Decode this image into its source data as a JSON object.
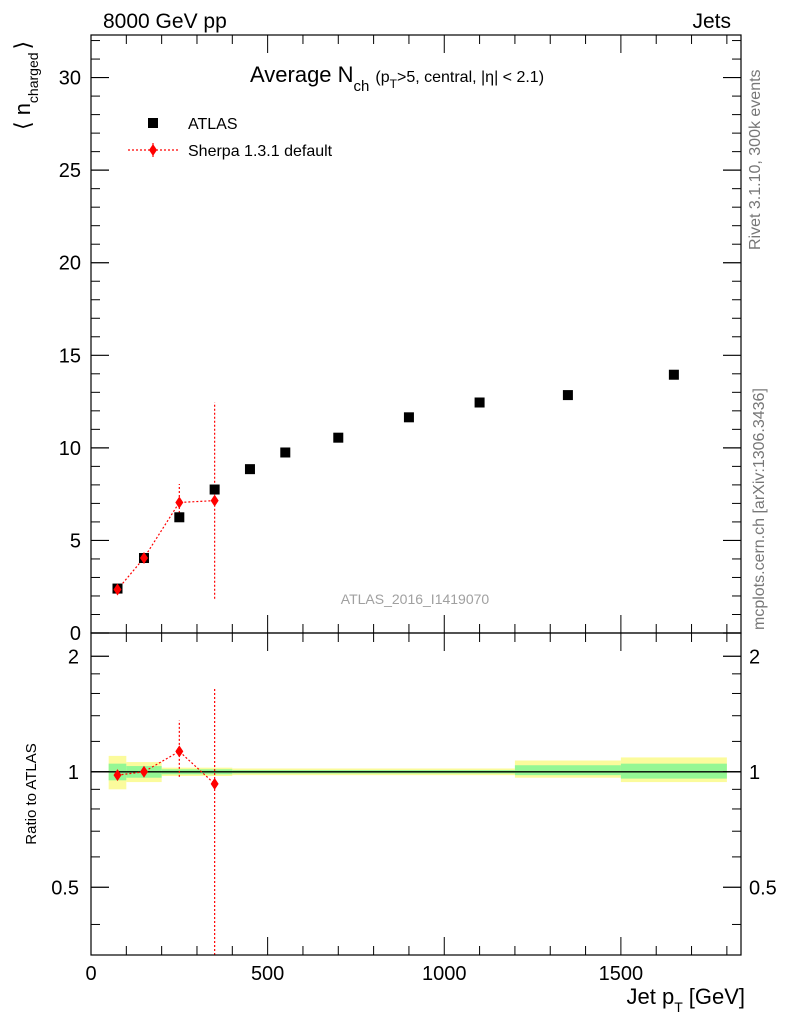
{
  "header": {
    "left": "8000 GeV pp",
    "right": "Jets"
  },
  "side_text": {
    "rivet": "Rivet 3.1.10,  300k events",
    "mcplots": "mcplots.cern.ch [arXiv:1306.3436]"
  },
  "chart_data": [
    {
      "type": "scatter",
      "title_main": "Average N",
      "title_sub": "ch",
      "title_rest": "(p",
      "title_sub2": "T",
      "title_tail": ">5, central, |η| < 2.1)",
      "ylabel": "⟨ n",
      "ylabel_sub": "charged",
      "ylabel_tail": "⟩",
      "ylim": [
        0,
        32.3
      ],
      "yticks": [
        0,
        5,
        10,
        15,
        20,
        25,
        30
      ],
      "watermark": "ATLAS_2016_I1419070",
      "legend_position": "top-left",
      "series": [
        {
          "name": "ATLAS",
          "marker": "square",
          "color": "#000000",
          "x": [
            75,
            150,
            250,
            350,
            450,
            550,
            700,
            900,
            1100,
            1350,
            1650
          ],
          "y": [
            2.4,
            4.05,
            6.25,
            7.75,
            8.85,
            9.75,
            10.55,
            11.65,
            12.45,
            12.85,
            13.95
          ]
        },
        {
          "name": "Sherpa 1.3.1 default",
          "marker": "diamond",
          "color": "#ff0000",
          "x": [
            75,
            150,
            250,
            350
          ],
          "y": [
            2.35,
            4.05,
            7.05,
            7.15
          ],
          "yerr_low": [
            0.25,
            0.2,
            1.0,
            5.3
          ],
          "yerr_high": [
            0.25,
            0.2,
            1.0,
            5.3
          ]
        }
      ]
    },
    {
      "type": "scatter",
      "ylabel": "Ratio to ATLAS",
      "xlabel": "Jet p",
      "xlabel_sub": "T",
      "xlabel_tail": "[GeV]",
      "xlim": [
        0,
        1840
      ],
      "ylim": [
        0.333,
        2.3
      ],
      "log_y": true,
      "xticks": [
        0,
        500,
        1000,
        1500
      ],
      "yticks": [
        0.5,
        1,
        2
      ],
      "bands": [
        {
          "x_low": 50,
          "x_high": 100,
          "y68": [
            0.95,
            1.05
          ],
          "y95": [
            0.9,
            1.1
          ]
        },
        {
          "x_low": 100,
          "x_high": 200,
          "y68": [
            0.965,
            1.035
          ],
          "y95": [
            0.94,
            1.06
          ]
        },
        {
          "x_low": 200,
          "x_high": 400,
          "y68": [
            0.985,
            1.015
          ],
          "y95": [
            0.975,
            1.025
          ]
        },
        {
          "x_low": 400,
          "x_high": 1200,
          "y68": [
            0.99,
            1.01
          ],
          "y95": [
            0.98,
            1.02
          ]
        },
        {
          "x_low": 1200,
          "x_high": 1500,
          "y68": [
            0.98,
            1.04
          ],
          "y95": [
            0.965,
            1.07
          ]
        },
        {
          "x_low": 1500,
          "x_high": 1800,
          "y68": [
            0.96,
            1.05
          ],
          "y95": [
            0.94,
            1.09
          ]
        }
      ],
      "band_colors": {
        "inner": "#94f794",
        "outer": "#fbfb9c"
      },
      "series": [
        {
          "name": "Sherpa 1.3.1 default",
          "color": "#ff0000",
          "x": [
            75,
            150,
            250,
            350
          ],
          "y": [
            0.98,
            1.0,
            1.13,
            0.93
          ],
          "yerr_low": [
            0.0,
            0.0,
            0.16,
            0.65
          ],
          "yerr_high": [
            0.0,
            0.0,
            0.23,
            0.72
          ]
        }
      ]
    }
  ]
}
